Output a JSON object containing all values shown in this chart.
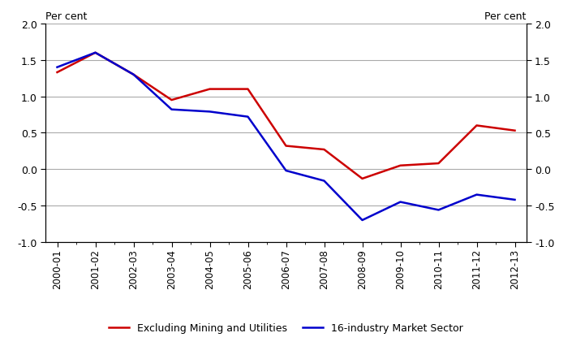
{
  "x_labels": [
    "2000-01",
    "2001-02",
    "2002-03",
    "2003-04",
    "2004-05",
    "2005-06",
    "2006-07",
    "2007-08",
    "2008-09",
    "2009-10",
    "2010-11",
    "2011-12",
    "2012-13"
  ],
  "red_series": [
    1.33,
    1.6,
    1.3,
    0.95,
    1.1,
    1.1,
    0.32,
    0.27,
    -0.13,
    0.05,
    0.08,
    0.6,
    0.53
  ],
  "blue_series": [
    1.4,
    1.6,
    1.3,
    0.82,
    0.79,
    0.72,
    -0.02,
    -0.16,
    -0.7,
    -0.45,
    -0.56,
    -0.35,
    -0.42
  ],
  "red_label": "Excluding Mining and Utilities",
  "blue_label": "16-industry Market Sector",
  "ylim": [
    -1.0,
    2.0
  ],
  "yticks": [
    -1.0,
    -0.5,
    0.0,
    0.5,
    1.0,
    1.5,
    2.0
  ],
  "ylabel_text": "Per cent",
  "red_color": "#cc0000",
  "blue_color": "#0000cc",
  "grid_color": "#aaaaaa",
  "background_color": "#ffffff",
  "legend_fontsize": 9,
  "tick_fontsize": 9,
  "xtick_fontsize": 8.5
}
